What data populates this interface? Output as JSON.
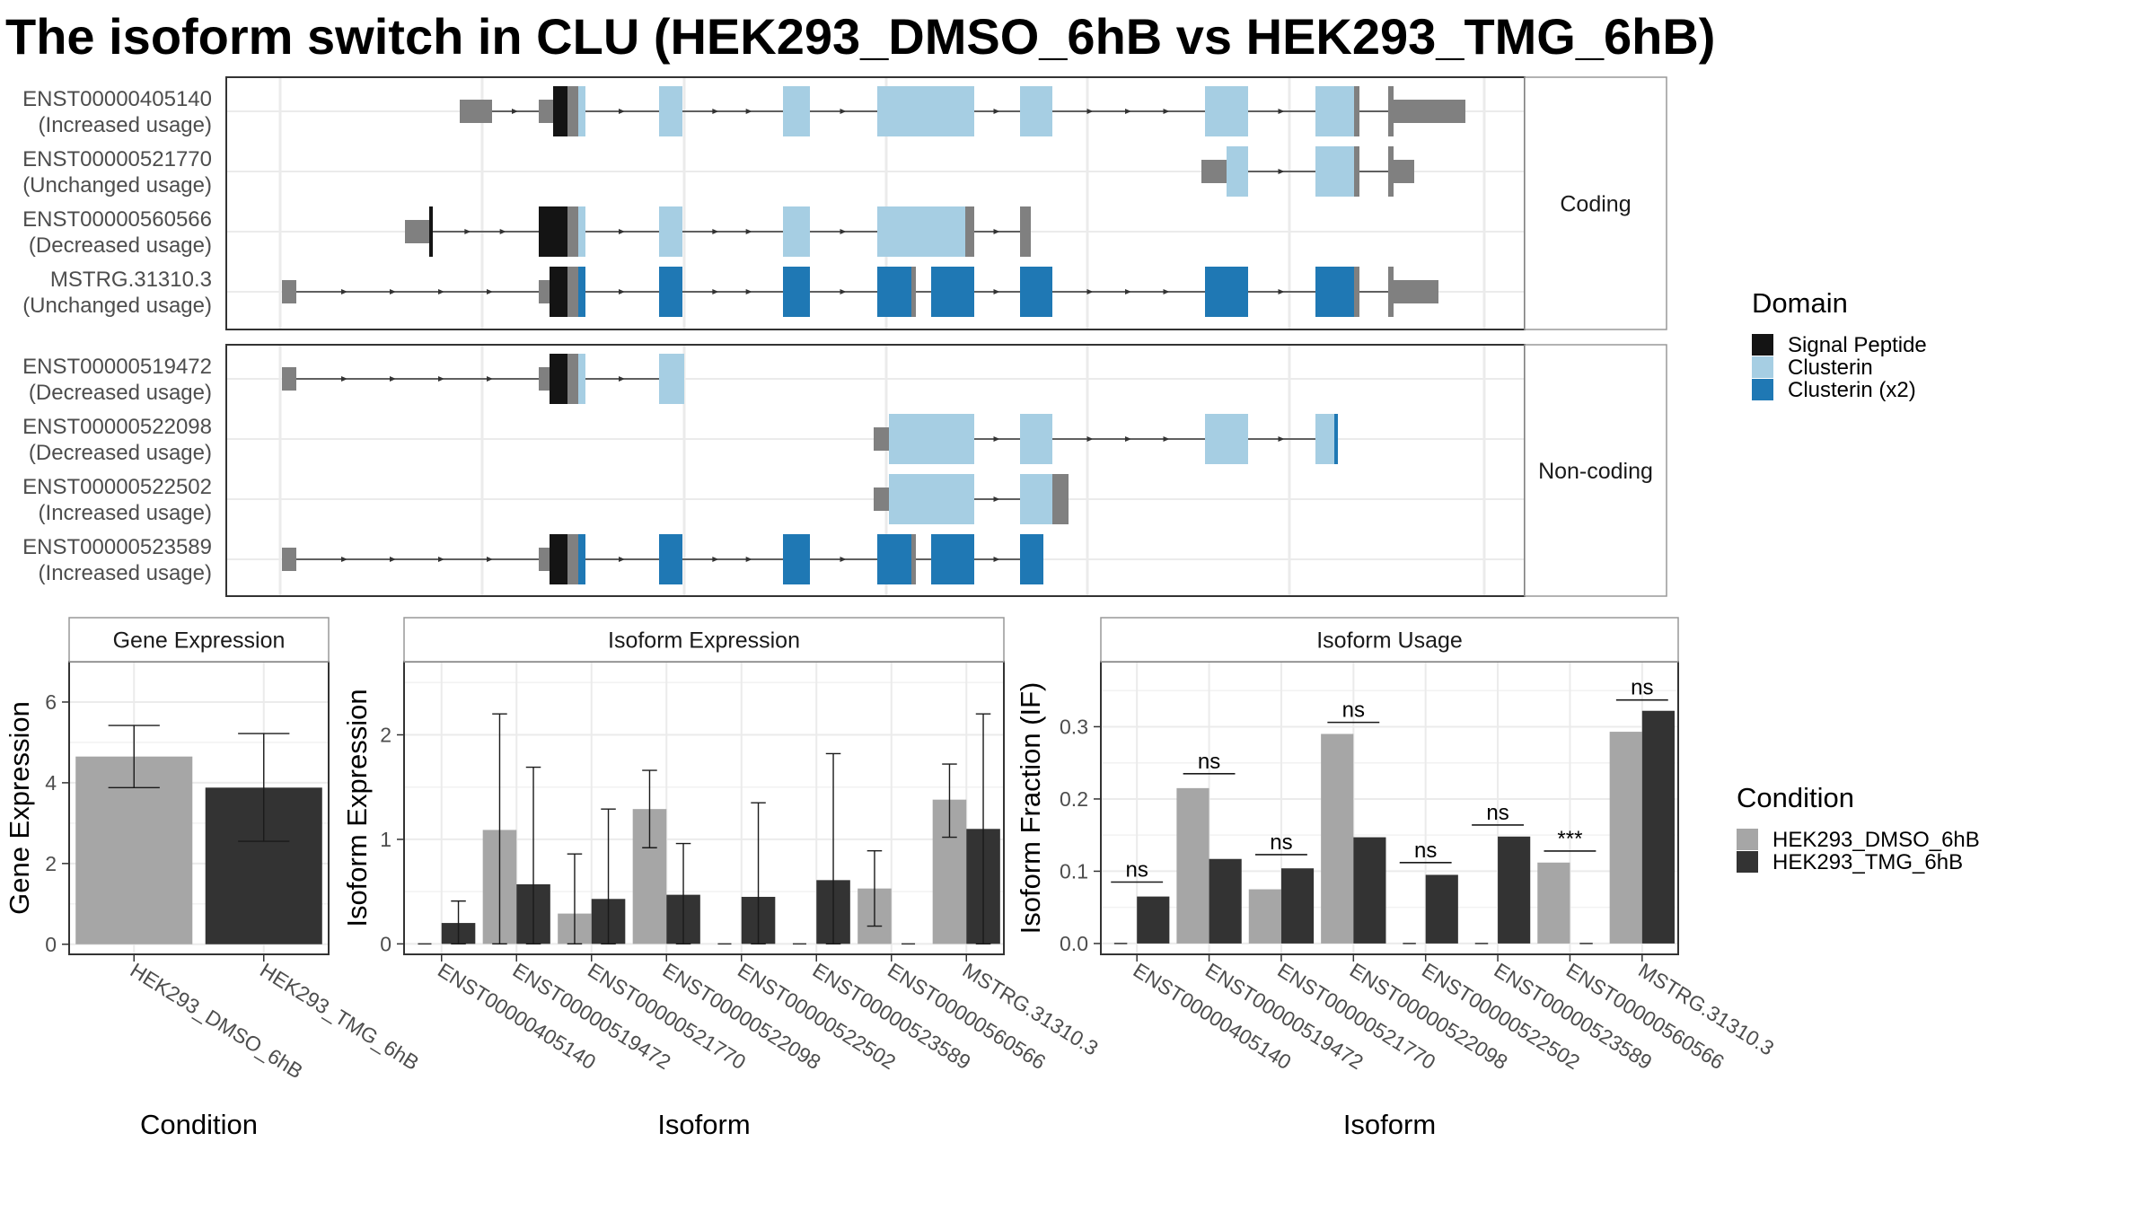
{
  "title": "The isoform switch in CLU (HEK293_DMSO_6hB vs HEK293_TMG_6hB)",
  "colors": {
    "signal_peptide": "#141414",
    "clusterin": "#a6cee3",
    "clusterin_x2": "#1f78b4",
    "utr": "#808080",
    "dmso": "#a6a6a6",
    "tmg": "#333333"
  },
  "domain_legend": {
    "title": "Domain",
    "items": [
      {
        "label": "Signal Peptide",
        "color": "#141414"
      },
      {
        "label": "Clusterin",
        "color": "#a6cee3"
      },
      {
        "label": "Clusterin (x2)",
        "color": "#1f78b4"
      }
    ]
  },
  "condition_legend": {
    "title": "Condition",
    "items": [
      {
        "label": "HEK293_DMSO_6hB",
        "color": "#a6a6a6"
      },
      {
        "label": "HEK293_TMG_6hB",
        "color": "#333333"
      }
    ]
  },
  "structure": {
    "panels": [
      {
        "label": "Coding",
        "rows": [
          {
            "id": "ENST00000405140",
            "usage": "(Increased usage)"
          },
          {
            "id": "ENST00000521770",
            "usage": "(Unchanged usage)"
          },
          {
            "id": "ENST00000560566",
            "usage": "(Decreased usage)"
          },
          {
            "id": "MSTRG.31310.3",
            "usage": "(Unchanged usage)"
          }
        ]
      },
      {
        "label": "Non-coding",
        "rows": [
          {
            "id": "ENST00000519472",
            "usage": "(Decreased usage)"
          },
          {
            "id": "ENST00000522098",
            "usage": "(Decreased usage)"
          },
          {
            "id": "ENST00000522502",
            "usage": "(Increased usage)"
          },
          {
            "id": "ENST00000523589",
            "usage": "(Increased usage)"
          }
        ]
      }
    ]
  },
  "chart_data": [
    {
      "type": "bar",
      "title": "Gene Expression",
      "xlabel": "Condition",
      "ylabel": "Gene Expression",
      "ylim": [
        -0.25,
        7
      ],
      "yticks": [
        0,
        2,
        4,
        6
      ],
      "categories": [
        "HEK293_DMSO_6hB",
        "HEK293_TMG_6hB"
      ],
      "values": [
        4.65,
        3.88
      ],
      "error_low": [
        3.88,
        2.55
      ],
      "error_high": [
        5.42,
        5.22
      ]
    },
    {
      "type": "bar",
      "title": "Isoform Expression",
      "xlabel": "Isoform",
      "ylabel": "Isoform Expression",
      "ylim": [
        -0.1,
        2.7
      ],
      "yticks": [
        0,
        1,
        2
      ],
      "categories": [
        "ENST00000405140",
        "ENST00000519472",
        "ENST00000521770",
        "ENST00000522098",
        "ENST00000522502",
        "ENST00000523589",
        "ENST00000560566",
        "MSTRG.31310.3"
      ],
      "series": [
        {
          "name": "HEK293_DMSO_6hB",
          "values": [
            0,
            1.09,
            0.29,
            1.29,
            0,
            0,
            0.53,
            1.38
          ],
          "error_low": [
            0,
            0,
            0,
            0.92,
            0,
            0,
            0.17,
            1.02
          ],
          "error_high": [
            0,
            2.2,
            0.86,
            1.66,
            0,
            0,
            0.89,
            1.72
          ]
        },
        {
          "name": "HEK293_TMG_6hB",
          "values": [
            0.2,
            0.57,
            0.43,
            0.47,
            0.45,
            0.61,
            0,
            1.1
          ],
          "error_low": [
            0,
            0,
            0,
            0,
            0,
            0,
            0,
            0
          ],
          "error_high": [
            0.41,
            1.69,
            1.29,
            0.96,
            1.35,
            1.82,
            0,
            2.2
          ]
        }
      ]
    },
    {
      "type": "bar",
      "title": "Isoform Usage",
      "xlabel": "Isoform",
      "ylabel": "Isoform Fraction (IF)",
      "ylim": [
        -0.015,
        0.39
      ],
      "yticks": [
        0.0,
        0.1,
        0.2,
        0.3
      ],
      "ytick_labels": [
        "0.0",
        "0.1",
        "0.2",
        "0.3"
      ],
      "categories": [
        "ENST00000405140",
        "ENST00000519472",
        "ENST00000521770",
        "ENST00000522098",
        "ENST00000522502",
        "ENST00000523589",
        "ENST00000560566",
        "MSTRG.31310.3"
      ],
      "series": [
        {
          "name": "HEK293_DMSO_6hB",
          "values": [
            0,
            0.215,
            0.075,
            0.29,
            0,
            0,
            0.112,
            0.293
          ]
        },
        {
          "name": "HEK293_TMG_6hB",
          "values": [
            0.065,
            0.117,
            0.104,
            0.147,
            0.095,
            0.148,
            0,
            0.322
          ]
        }
      ],
      "significance": [
        {
          "label": "ns",
          "y": 0.085
        },
        {
          "label": "ns",
          "y": 0.235
        },
        {
          "label": "ns",
          "y": 0.123
        },
        {
          "label": "ns",
          "y": 0.306
        },
        {
          "label": "ns",
          "y": 0.112
        },
        {
          "label": "ns",
          "y": 0.164
        },
        {
          "label": "***",
          "y": 0.128
        },
        {
          "label": "ns",
          "y": 0.337
        }
      ]
    }
  ]
}
